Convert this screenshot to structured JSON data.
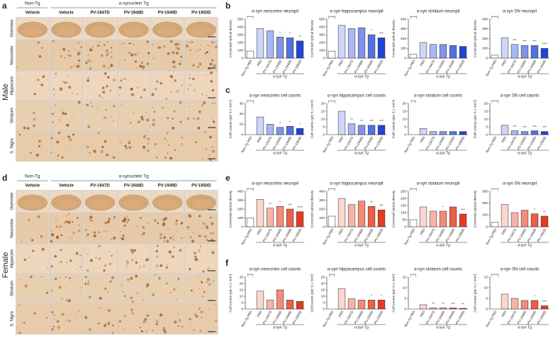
{
  "figure": {
    "panel_letters": [
      "a",
      "b",
      "c",
      "d",
      "e",
      "f"
    ],
    "micrographs": [
      {
        "sex_label": "Male",
        "group_headers": [
          "Non-Tg",
          "α-synuclein Tg"
        ],
        "columns": [
          "Vehicle",
          "Vehicle",
          "PV-1947D",
          "PV-1948D",
          "PV-1949D",
          "PV-1950D"
        ],
        "rows": [
          "Overview",
          "Neocortex",
          "Hippocam",
          "Striatum",
          "S. Nigra"
        ]
      },
      {
        "sex_label": "Female",
        "group_headers": [
          "Non-Tg",
          "α-synuclein Tg"
        ],
        "columns": [
          "Vehicle",
          "Vehicle",
          "PV-1947D",
          "PV-1948D",
          "PV-1949D",
          "PV-1950D"
        ],
        "rows": [
          "Overview",
          "Neocortex",
          "Hippocam",
          "Striatum",
          "S. Nigra"
        ]
      }
    ]
  },
  "chart_data": [
    {
      "type": "bar",
      "title": "α-syn neocortex neuropil",
      "ylabel": "Corrected optical density",
      "group_label": "α-syn Tg",
      "categories": [
        "Non-Tg PBS",
        "PBS",
        "PV-1947D",
        "PV-1948D",
        "PV-1949D",
        "PV-1950D"
      ],
      "values": [
        90,
        380,
        350,
        270,
        260,
        220
      ],
      "significance": [
        "(****)",
        null,
        null,
        "*",
        "*",
        "**"
      ],
      "colors": [
        "#ffffff",
        "#cdd6f8",
        "#a9b7f2",
        "#7f93ea",
        "#5271e3",
        "#1f44d8"
      ],
      "ylim": [
        0,
        500
      ],
      "yticks": [
        0,
        100,
        200,
        300,
        400,
        500
      ]
    },
    {
      "type": "bar",
      "title": "α-syn hippocampus neuropil",
      "ylabel": "Corrected optical density",
      "group_label": "α-syn Tg",
      "categories": [
        "Non-Tg PBS",
        "PBS",
        "PV-1947D",
        "PV-1948D",
        "PV-1949D",
        "PV-1950D"
      ],
      "values": [
        90,
        420,
        380,
        390,
        300,
        260
      ],
      "significance": [
        "(****)",
        null,
        null,
        null,
        "*",
        "***"
      ],
      "colors": [
        "#ffffff",
        "#cdd6f8",
        "#a9b7f2",
        "#7f93ea",
        "#5271e3",
        "#1f44d8"
      ],
      "ylim": [
        0,
        500
      ],
      "yticks": [
        0,
        100,
        200,
        300,
        400,
        500
      ]
    },
    {
      "type": "bar",
      "title": "α-syn striatum neuropil",
      "ylabel": "Corrected optical density",
      "group_label": "α-syn Tg",
      "categories": [
        "Non-Tg PBS",
        "PBS",
        "PV-1947D",
        "PV-1948D",
        "PV-1949D",
        "PV-1950D"
      ],
      "values": [
        40,
        160,
        140,
        140,
        130,
        120
      ],
      "significance": [
        "(****)",
        null,
        null,
        null,
        null,
        null
      ],
      "colors": [
        "#ffffff",
        "#cdd6f8",
        "#a9b7f2",
        "#7f93ea",
        "#5271e3",
        "#1f44d8"
      ],
      "ylim": [
        0,
        400
      ],
      "yticks": [
        0,
        100,
        200,
        300,
        400
      ]
    },
    {
      "type": "bar",
      "title": "α-syn SN neuropil",
      "ylabel": "Corrected optical density",
      "group_label": "α-syn Tg",
      "categories": [
        "Non-Tg PBS",
        "PBS",
        "PV-1947D",
        "PV-1948D",
        "PV-1949D",
        "PV-1950D"
      ],
      "values": [
        30,
        210,
        140,
        130,
        130,
        100
      ],
      "significance": [
        "(****)",
        null,
        "***",
        "***",
        "***",
        "****"
      ],
      "colors": [
        "#ffffff",
        "#cdd6f8",
        "#a9b7f2",
        "#7f93ea",
        "#5271e3",
        "#1f44d8"
      ],
      "ylim": [
        0,
        400
      ],
      "yticks": [
        0,
        100,
        200,
        300,
        400
      ]
    },
    {
      "type": "bar",
      "title": "α-syn neocortex cell counts",
      "ylabel": "Cell counts (per 0.1 mm²)",
      "group_label": "α-syn Tg",
      "categories": [
        "Non-Tg PBS",
        "PBS",
        "PV-1947D",
        "PV-1948D",
        "PV-1949D",
        "PV-1950D"
      ],
      "values": [
        0,
        17,
        10,
        7,
        8,
        6
      ],
      "significance": [
        "(****)",
        null,
        null,
        "*",
        "*",
        "*"
      ],
      "colors": [
        "#ffffff",
        "#cdd6f8",
        "#a9b7f2",
        "#7f93ea",
        "#5271e3",
        "#1f44d8"
      ],
      "ylim": [
        0,
        30
      ],
      "yticks": [
        0,
        10,
        20,
        30
      ]
    },
    {
      "type": "bar",
      "title": "α-syn hippocampus cell counts",
      "ylabel": "Cell counts (per 0.1 mm²)",
      "group_label": "α-syn Tg",
      "categories": [
        "Non-Tg PBS",
        "PBS",
        "PV-1947D",
        "PV-1948D",
        "PV-1949D",
        "PV-1950D"
      ],
      "values": [
        0,
        15,
        7,
        6,
        6,
        6
      ],
      "significance": [
        "(****)",
        null,
        "**",
        "**",
        "***",
        "***"
      ],
      "colors": [
        "#ffffff",
        "#cdd6f8",
        "#a9b7f2",
        "#7f93ea",
        "#5271e3",
        "#1f44d8"
      ],
      "ylim": [
        0,
        20
      ],
      "yticks": [
        0,
        5,
        10,
        15,
        20
      ]
    },
    {
      "type": "bar",
      "title": "α-syn striatum cell counts",
      "ylabel": "Cell counts (per 0.1 mm²)",
      "group_label": "α-syn Tg",
      "categories": [
        "Non-Tg PBS",
        "PBS",
        "PV-1947D",
        "PV-1948D",
        "PV-1949D",
        "PV-1950D"
      ],
      "values": [
        0,
        4,
        2,
        2,
        2,
        2
      ],
      "significance": [
        "(**)",
        null,
        null,
        null,
        null,
        null
      ],
      "colors": [
        "#ffffff",
        "#cdd6f8",
        "#a9b7f2",
        "#7f93ea",
        "#5271e3",
        "#1f44d8"
      ],
      "ylim": [
        0,
        20
      ],
      "yticks": [
        0,
        5,
        10,
        15,
        20
      ]
    },
    {
      "type": "bar",
      "title": "α-syn SN cell counts",
      "ylabel": "Cell counts (per 0.1 mm²)",
      "group_label": "α-syn Tg",
      "categories": [
        "Non-Tg PBS",
        "PBS",
        "PV-1947D",
        "PV-1948D",
        "PV-1949D",
        "PV-1950D"
      ],
      "values": [
        0,
        6,
        2.5,
        2,
        2.5,
        2
      ],
      "significance": [
        "(****)",
        null,
        "***",
        "***",
        "***",
        "***"
      ],
      "colors": [
        "#ffffff",
        "#cdd6f8",
        "#a9b7f2",
        "#7f93ea",
        "#5271e3",
        "#1f44d8"
      ],
      "ylim": [
        0,
        20
      ],
      "yticks": [
        0,
        5,
        10,
        15,
        20
      ]
    },
    {
      "type": "bar",
      "title": "α-syn neocortex neuropil",
      "ylabel": "Corrected optical density",
      "group_label": "α-syn Tg",
      "categories": [
        "Non-Tg PBS",
        "PBS",
        "PV-1947D",
        "PV-1948D",
        "PV-1949D",
        "PV-1950D"
      ],
      "values": [
        100,
        310,
        210,
        230,
        200,
        170
      ],
      "significance": [
        "(****)",
        null,
        "**",
        "*",
        "***",
        "****"
      ],
      "colors": [
        "#ffffff",
        "#fbd6cf",
        "#f7b4a6",
        "#f38b77",
        "#ee5e46",
        "#e63b22"
      ],
      "ylim": [
        0,
        400
      ],
      "yticks": [
        0,
        100,
        200,
        300,
        400
      ]
    },
    {
      "type": "bar",
      "title": "α-syn hippocampus neuropil",
      "ylabel": "Corrected optical density",
      "group_label": "α-syn Tg",
      "categories": [
        "Non-Tg PBS",
        "PBS",
        "PV-1947D",
        "PV-1948D",
        "PV-1949D",
        "PV-1950D"
      ],
      "values": [
        120,
        320,
        250,
        290,
        230,
        190
      ],
      "significance": [
        "(****)",
        null,
        null,
        null,
        "**",
        "***"
      ],
      "colors": [
        "#ffffff",
        "#fbd6cf",
        "#f7b4a6",
        "#f38b77",
        "#ee5e46",
        "#e63b22"
      ],
      "ylim": [
        0,
        400
      ],
      "yticks": [
        0,
        100,
        200,
        300,
        400
      ]
    },
    {
      "type": "bar",
      "title": "α-syn striatum neuropil",
      "ylabel": "Corrected optical density",
      "group_label": "α-syn Tg",
      "categories": [
        "Non-Tg PBS",
        "PBS",
        "PV-1947D",
        "PV-1948D",
        "PV-1949D",
        "PV-1950D"
      ],
      "values": [
        50,
        140,
        110,
        110,
        140,
        90
      ],
      "significance": [
        "(****)",
        null,
        null,
        "*",
        null,
        "***"
      ],
      "colors": [
        "#ffffff",
        "#fbd6cf",
        "#f7b4a6",
        "#f38b77",
        "#ee5e46",
        "#e63b22"
      ],
      "ylim": [
        0,
        250
      ],
      "yticks": [
        0,
        50,
        100,
        150,
        200,
        250
      ]
    },
    {
      "type": "bar",
      "title": "α-syn SN neuropil",
      "ylabel": "Corrected optical density",
      "group_label": "α-syn Tg",
      "categories": [
        "Non-Tg PBS",
        "PBS",
        "PV-1947D",
        "PV-1948D",
        "PV-1949D",
        "PV-1950D"
      ],
      "values": [
        40,
        190,
        120,
        140,
        110,
        90
      ],
      "significance": [
        "(****)",
        null,
        null,
        null,
        "*",
        "**"
      ],
      "colors": [
        "#ffffff",
        "#fbd6cf",
        "#f7b4a6",
        "#f38b77",
        "#ee5e46",
        "#e63b22"
      ],
      "ylim": [
        0,
        300
      ],
      "yticks": [
        0,
        100,
        200,
        300
      ]
    },
    {
      "type": "bar",
      "title": "α-syn neocortex cell counts",
      "ylabel": "Cell counts (per 0.1 mm²)",
      "group_label": "α-syn Tg",
      "categories": [
        "Non-Tg PBS",
        "PBS",
        "PV-1947D",
        "PV-1948D",
        "PV-1949D",
        "PV-1950D"
      ],
      "values": [
        0,
        14,
        7,
        15,
        7,
        6
      ],
      "significance": [
        "(***)",
        null,
        null,
        null,
        null,
        null
      ],
      "colors": [
        "#ffffff",
        "#fbd6cf",
        "#f7b4a6",
        "#f38b77",
        "#ee5e46",
        "#e63b22"
      ],
      "ylim": [
        0,
        25
      ],
      "yticks": [
        0,
        5,
        10,
        15,
        20,
        25
      ]
    },
    {
      "type": "bar",
      "title": "α-syn hippocampus cell counts",
      "ylabel": "Cell counts (per 0.1 mm²)",
      "group_label": "α-syn Tg",
      "categories": [
        "Non-Tg PBS",
        "PBS",
        "PV-1947D",
        "PV-1948D",
        "PV-1949D",
        "PV-1950D"
      ],
      "values": [
        0,
        16,
        8,
        7,
        7,
        7
      ],
      "significance": [
        "(***)",
        null,
        null,
        null,
        "*",
        "*"
      ],
      "colors": [
        "#ffffff",
        "#fbd6cf",
        "#f7b4a6",
        "#f38b77",
        "#ee5e46",
        "#e63b22"
      ],
      "ylim": [
        0,
        25
      ],
      "yticks": [
        0,
        5,
        10,
        15,
        20,
        25
      ]
    },
    {
      "type": "bar",
      "title": "α-syn striatum cell counts",
      "ylabel": "Cell counts (per 0.1 mm²)",
      "group_label": "α-syn Tg",
      "categories": [
        "Non-Tg PBS",
        "PBS",
        "PV-1947D",
        "PV-1948D",
        "PV-1949D",
        "PV-1950D"
      ],
      "values": [
        0,
        2,
        0.5,
        0.5,
        0.5,
        0.3
      ],
      "significance": [
        "(***)",
        null,
        "**",
        "**",
        "***",
        "**"
      ],
      "colors": [
        "#ffffff",
        "#fbd6cf",
        "#f7b4a6",
        "#f38b77",
        "#ee5e46",
        "#e63b22"
      ],
      "ylim": [
        0,
        15
      ],
      "yticks": [
        0,
        5,
        10,
        15
      ]
    },
    {
      "type": "bar",
      "title": "α-syn SN cell counts",
      "ylabel": "Cell counts (per 0.1 mm²)",
      "group_label": "α-syn Tg",
      "categories": [
        "Non-Tg PBS",
        "PBS",
        "PV-1947D",
        "PV-1948D",
        "PV-1949D",
        "PV-1950D"
      ],
      "values": [
        0,
        7,
        5,
        4,
        4,
        1.5
      ],
      "significance": [
        "(****)",
        null,
        null,
        null,
        "*",
        "****"
      ],
      "colors": [
        "#ffffff",
        "#fbd6cf",
        "#f7b4a6",
        "#f38b77",
        "#ee5e46",
        "#e63b22"
      ],
      "ylim": [
        0,
        15
      ],
      "yticks": [
        0,
        5,
        10,
        15
      ]
    }
  ]
}
